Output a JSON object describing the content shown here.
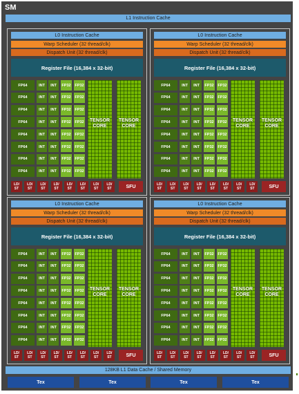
{
  "sm_title": "SM",
  "l1_instruction_cache": "L1 Instruction Cache",
  "quadrant": {
    "l0_cache": "L0 Instruction Cache",
    "warp_scheduler": "Warp Scheduler (32 thread/clk)",
    "dispatch_unit": "Dispatch Unit (32 thread/clk)",
    "register_file": "Register File (16,384 x 32-bit)",
    "fp64": "FP64",
    "int": "INT",
    "fp32": "FP32",
    "tensor_core_line1": "TENSOR",
    "tensor_core_line2": "CORE",
    "ldst_line1": "LD/",
    "ldst_line2": "ST",
    "sfu": "SFU"
  },
  "l1_data_cache": "128KB L1 Data Cache / Shared Memory",
  "tex_unit": "Tex",
  "colors": {
    "cache_blue": "#6faee2",
    "scheduler_orange": "#f08a28",
    "register_teal": "#1d5a6b",
    "fp_green": "#76b900",
    "ldst_red": "#8a1d1d",
    "tex_blue": "#1f4f9e"
  }
}
